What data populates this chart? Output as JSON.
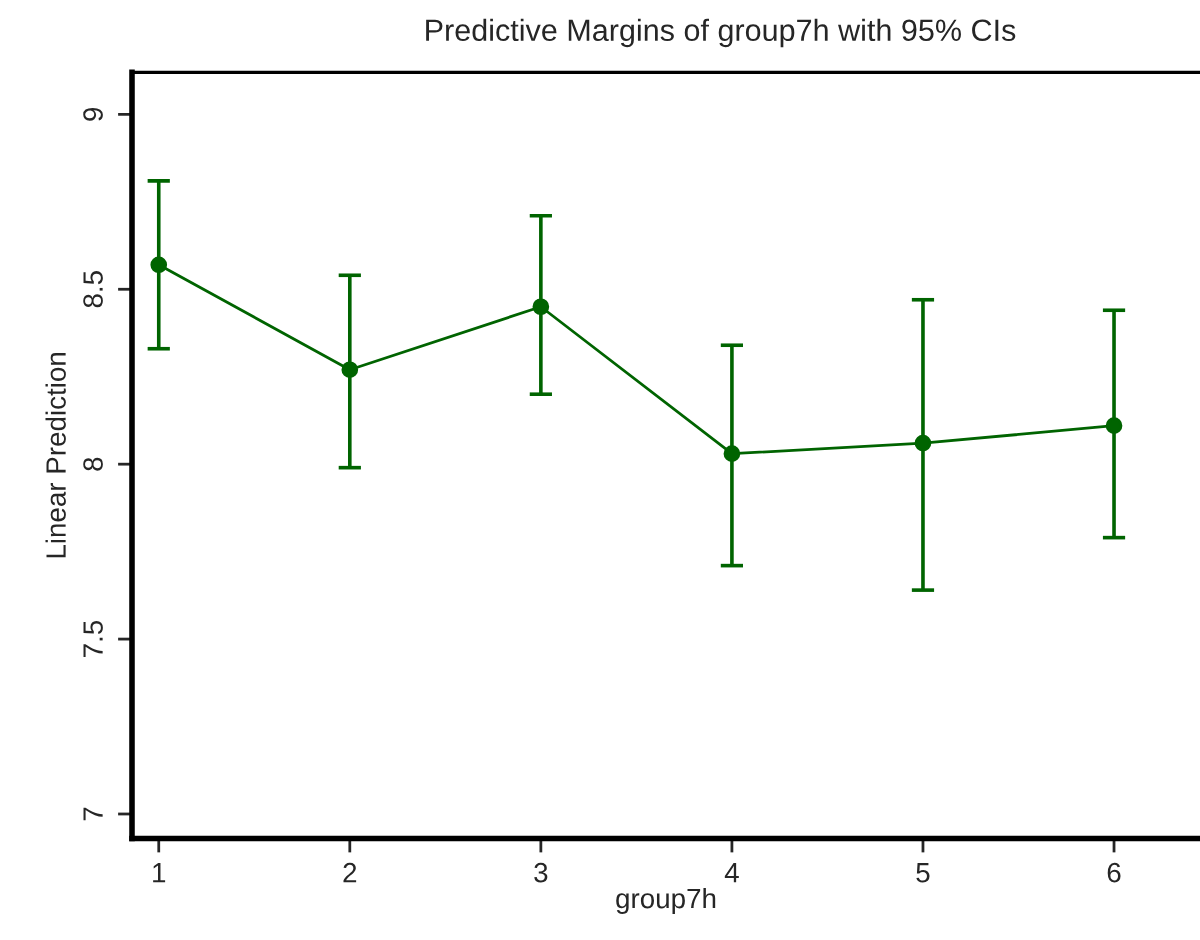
{
  "chart_data": {
    "type": "line",
    "title": "Predictive Margins of group7h with 95% CIs",
    "xlabel": "group7h",
    "ylabel": "Linear Prediction",
    "x": [
      1,
      2,
      3,
      4,
      5,
      6
    ],
    "series": [
      {
        "color": "#006400",
        "values": [
          8.57,
          8.27,
          8.45,
          8.03,
          8.06,
          8.11
        ],
        "errors": [
          [
            8.33,
            8.81
          ],
          [
            7.99,
            8.54
          ],
          [
            8.2,
            8.71
          ],
          [
            7.71,
            8.34
          ],
          [
            7.64,
            8.47
          ],
          [
            7.79,
            8.44
          ]
        ]
      }
    ],
    "xlim": [
      0.86,
      6.45
    ],
    "xticks": [
      1,
      2,
      3,
      4,
      5,
      6
    ],
    "ylim": [
      6.93,
      9.12
    ],
    "yticks": [
      7,
      7.5,
      8,
      8.5,
      9
    ],
    "grid": false,
    "marker": "circle",
    "line_style": "solid"
  }
}
